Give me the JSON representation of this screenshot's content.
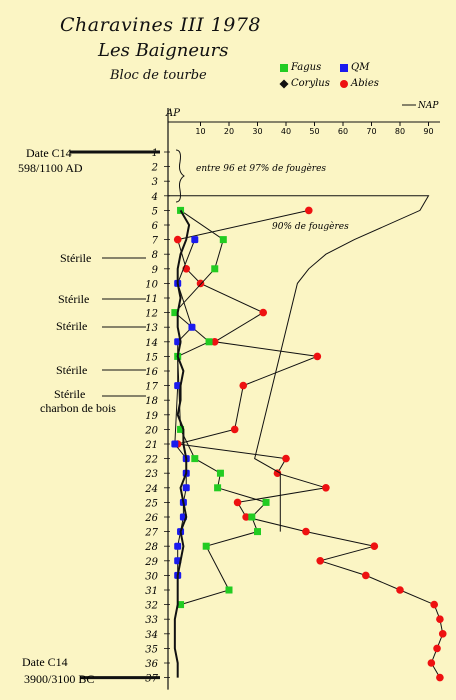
{
  "header": {
    "title_line1": "Charavines III 1978",
    "title_line2": "Les Baigneurs",
    "title_line3": "Bloc de tourbe"
  },
  "legend": {
    "fagus": "Fagus",
    "qm": "QM",
    "corylus": "Corylus",
    "abies": "Abies"
  },
  "annotations": {
    "fern_range": "entre 96 et 97% de fougères",
    "fern_90": "90% de fougères"
  },
  "side_labels": {
    "date_top_1": "Date C14",
    "date_top_2": "598/1100 AD",
    "date_bottom_1": "Date C14",
    "date_bottom_2": "3900/3100 BC",
    "sterile": "Stérile",
    "charbon": "charbon de bois"
  },
  "colors": {
    "background": "#fbf5c4",
    "fagus": "#22cc22",
    "qm": "#1a1aee",
    "corylus": "#111111",
    "abies": "#ee1111"
  },
  "chart_data": {
    "type": "line",
    "xlabel_left": "AP",
    "xlabel_right": "NAP",
    "x_ticks": [
      10,
      20,
      30,
      40,
      50,
      60,
      70,
      80,
      90
    ],
    "xlim": [
      0,
      95
    ],
    "samples": [
      "1",
      "2",
      "3",
      "4",
      "5",
      "6",
      "7",
      "8",
      "9",
      "10",
      "11",
      "12",
      "13",
      "14",
      "15",
      "16",
      "17",
      "18",
      "19",
      "20",
      "21",
      "22",
      "23",
      "24",
      "25",
      "26",
      "27",
      "28",
      "29",
      "30",
      "31",
      "32",
      "33",
      "34",
      "35",
      "36",
      "37"
    ],
    "series": [
      {
        "name": "Abies",
        "values": [
          null,
          null,
          null,
          null,
          48,
          null,
          2,
          null,
          5,
          10,
          null,
          32,
          null,
          15,
          51,
          null,
          25,
          null,
          null,
          22,
          2,
          40,
          37,
          54,
          23,
          26,
          47,
          71,
          52,
          68,
          80,
          92,
          94,
          95,
          93,
          91,
          94
        ]
      },
      {
        "name": "Fagus",
        "values": [
          null,
          null,
          null,
          null,
          3,
          null,
          18,
          null,
          15,
          null,
          null,
          1,
          null,
          13,
          2,
          null,
          null,
          null,
          null,
          3,
          null,
          8,
          17,
          16,
          33,
          28,
          30,
          12,
          null,
          null,
          20,
          3,
          null,
          null,
          null,
          null,
          null
        ]
      },
      {
        "name": "QM",
        "values": [
          null,
          null,
          null,
          null,
          null,
          null,
          8,
          null,
          null,
          2,
          null,
          null,
          7,
          2,
          null,
          null,
          2,
          null,
          null,
          null,
          1,
          5,
          5,
          5,
          4,
          4,
          3,
          2,
          2,
          2,
          null,
          null,
          null,
          null,
          null,
          null,
          null
        ]
      },
      {
        "name": "Corylus",
        "values": [
          null,
          null,
          null,
          null,
          3,
          6,
          5,
          3,
          2,
          2,
          3,
          2,
          2,
          3,
          2,
          4,
          3,
          3,
          2,
          4,
          4,
          5,
          5,
          3,
          4,
          5,
          3,
          4,
          3,
          2,
          2,
          2,
          1,
          1,
          1,
          2,
          2
        ]
      },
      {
        "name": "NAP",
        "values": [
          null,
          null,
          null,
          90,
          87,
          null,
          64,
          54,
          48,
          44,
          null,
          null,
          null,
          null,
          null,
          null,
          null,
          null,
          null,
          null,
          null,
          29,
          38,
          null,
          null,
          null,
          38,
          null,
          null,
          null,
          null,
          null,
          null,
          null,
          null,
          null,
          null
        ]
      }
    ]
  }
}
